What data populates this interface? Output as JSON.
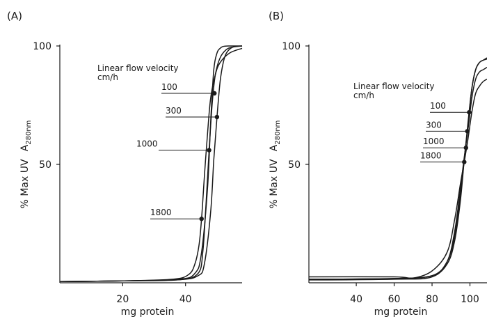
{
  "chart_data": [
    {
      "type": "line",
      "panel": "(A)",
      "legend_title": [
        "Linear flow velocity",
        "cm/h"
      ],
      "ylabel_parts": [
        "% Max UV",
        "A",
        "280nm"
      ],
      "xlabel": "mg protein",
      "xlim": [
        0,
        58
      ],
      "ylim": [
        0,
        100
      ],
      "x_ticks": [
        {
          "v": 20,
          "label": "20"
        },
        {
          "v": 40,
          "label": "40"
        }
      ],
      "y_ticks": [
        {
          "v": 50,
          "label": "50"
        },
        {
          "v": 100,
          "label": "100"
        }
      ],
      "series": [
        {
          "velocity": "100",
          "marker": {
            "x": 49.2,
            "y": 80
          },
          "x": [
            0,
            20,
            38,
            43,
            45,
            47,
            48,
            49,
            50,
            51,
            52,
            54,
            56,
            58
          ],
          "y": [
            0.5,
            0.8,
            1.5,
            4,
            12,
            40,
            68,
            90,
            97,
            99,
            99.8,
            100,
            100,
            100
          ]
        },
        {
          "velocity": "300",
          "marker": {
            "x": 50,
            "y": 70
          },
          "x": [
            0,
            20,
            38,
            44,
            46,
            48,
            49,
            50,
            51,
            52,
            53,
            55,
            58
          ],
          "y": [
            0.5,
            0.8,
            1.3,
            3,
            8,
            30,
            52,
            70,
            85,
            93,
            97,
            99.5,
            100
          ]
        },
        {
          "velocity": "1000",
          "marker": {
            "x": 47.5,
            "y": 56
          },
          "x": [
            0,
            20,
            38,
            44,
            45.5,
            46.5,
            47.5,
            48.5,
            49.5,
            51,
            53,
            55,
            58
          ],
          "y": [
            0.5,
            0.8,
            1.3,
            4,
            13,
            33,
            56,
            76,
            88,
            95,
            98.5,
            99.5,
            100
          ]
        },
        {
          "velocity": "1800",
          "marker": {
            "x": 45.1,
            "y": 27
          },
          "x": [
            0,
            20,
            36,
            41,
            43,
            44.3,
            45.1,
            46,
            47,
            48,
            49.5,
            51,
            54,
            58
          ],
          "y": [
            0.5,
            0.8,
            1.5,
            3.5,
            8,
            16,
            27,
            45,
            63,
            78,
            88,
            93,
            97,
            99
          ]
        }
      ]
    },
    {
      "type": "line",
      "panel": "(B)",
      "legend_title": [
        "Linear flow velocity",
        "cm/h"
      ],
      "ylabel_parts": [
        "% Max UV",
        "A",
        "280nm"
      ],
      "xlabel": "mg protein",
      "xlim": [
        15,
        109
      ],
      "ylim": [
        0,
        100
      ],
      "x_ticks": [
        {
          "v": 40,
          "label": "40"
        },
        {
          "v": 60,
          "label": "60"
        },
        {
          "v": 80,
          "label": "80"
        },
        {
          "v": 100,
          "label": "100"
        }
      ],
      "y_ticks": [
        {
          "v": 50,
          "label": "50"
        },
        {
          "v": 100,
          "label": "100"
        }
      ],
      "series": [
        {
          "velocity": "100",
          "marker": {
            "x": 99.6,
            "y": 72
          },
          "x": [
            15,
            60,
            80,
            88,
            92,
            95,
            97,
            99,
            101,
            103,
            105,
            107,
            109
          ],
          "y": [
            1.5,
            1.8,
            3,
            8,
            18,
            35,
            52,
            68,
            82,
            90,
            93,
            94,
            95
          ]
        },
        {
          "velocity": "300",
          "marker": {
            "x": 98.6,
            "y": 64
          },
          "x": [
            15,
            60,
            80,
            88,
            92,
            95,
            97,
            99,
            101,
            103,
            105,
            107,
            109
          ],
          "y": [
            1.5,
            1.8,
            3,
            9,
            20,
            37,
            52,
            67,
            82,
            90,
            93,
            94,
            94.5
          ]
        },
        {
          "velocity": "1000",
          "marker": {
            "x": 97.9,
            "y": 57
          },
          "x": [
            15,
            60,
            80,
            88,
            92,
            95,
            97,
            99,
            101,
            103,
            105,
            107,
            109
          ],
          "y": [
            1.2,
            1.5,
            2.5,
            9,
            22,
            40,
            53,
            65,
            78,
            86,
            89,
            90,
            91
          ]
        },
        {
          "velocity": "1800",
          "marker": {
            "x": 97,
            "y": 51
          },
          "x": [
            15,
            60,
            70,
            80,
            88,
            92,
            95,
            97,
            99,
            101,
            103,
            105,
            107,
            109
          ],
          "y": [
            2.5,
            2.5,
            2,
            5,
            13,
            27,
            42,
            51,
            61,
            72,
            80,
            83,
            85,
            86
          ]
        }
      ]
    }
  ]
}
